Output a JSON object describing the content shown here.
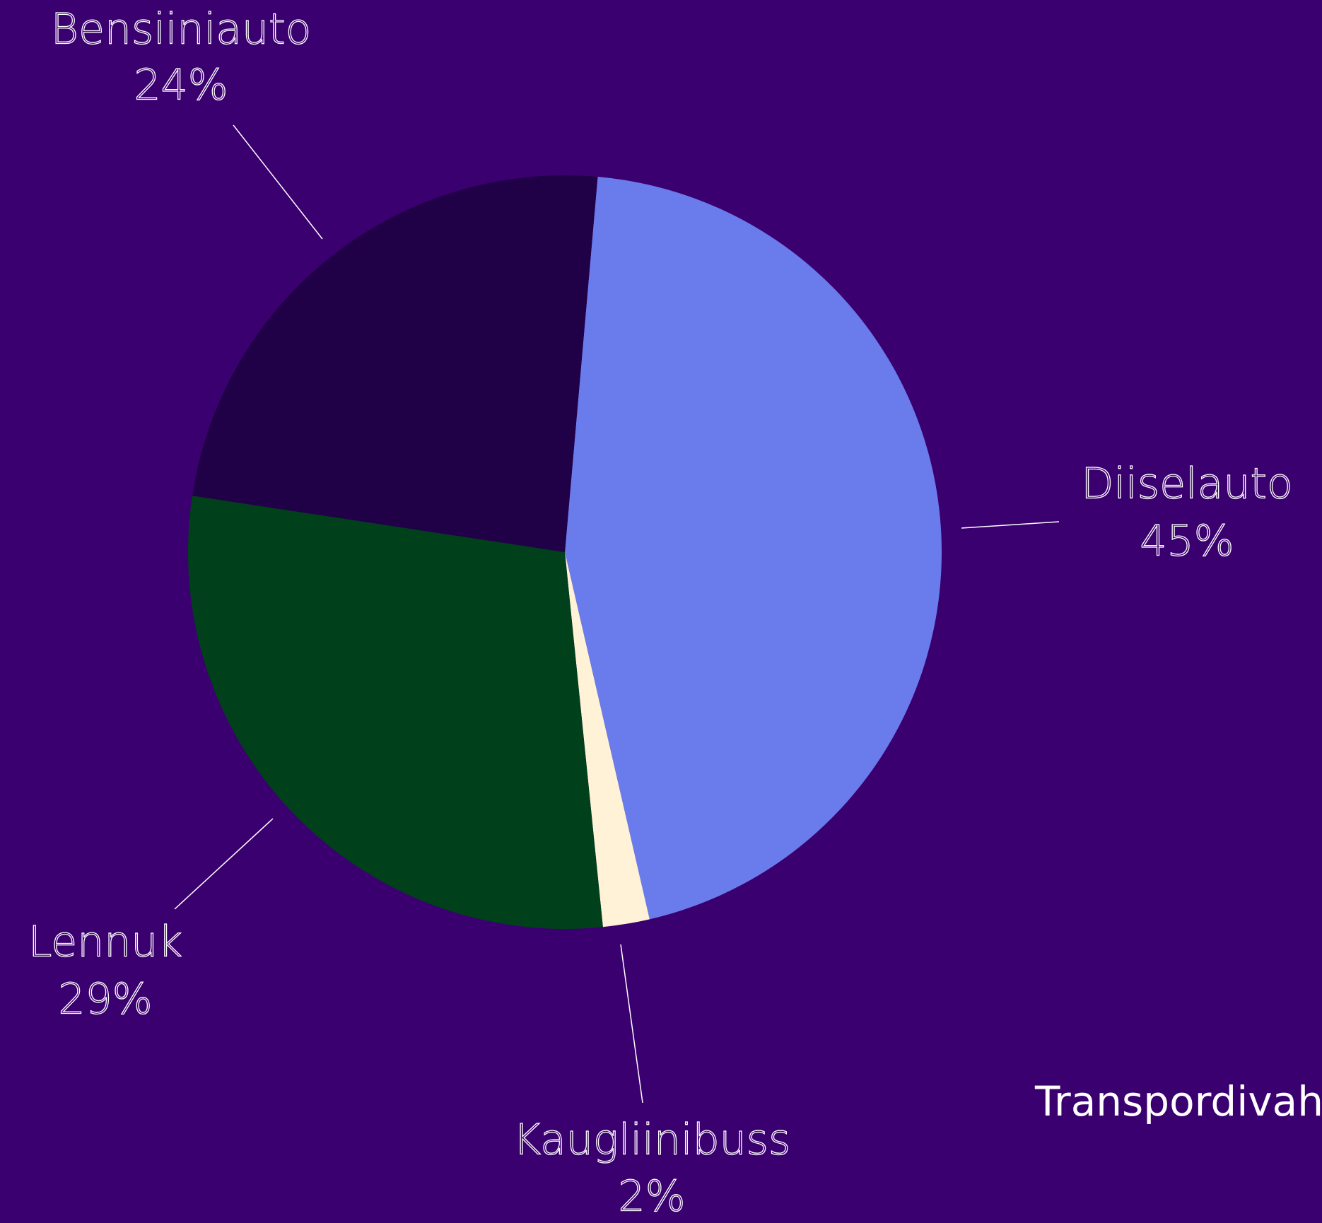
{
  "chart_data": {
    "type": "pie",
    "title": "Transpordivah",
    "categories": [
      "Diiselauto",
      "Kaugliinibuss",
      "Lennuk",
      "Bensiiniauto"
    ],
    "values": [
      45,
      2,
      29,
      24
    ],
    "value_labels": [
      "45%",
      "2%",
      "29%",
      "24%"
    ],
    "colors": [
      "#6a7bec",
      "#fff2d6",
      "#00401a",
      "#200046"
    ]
  }
}
